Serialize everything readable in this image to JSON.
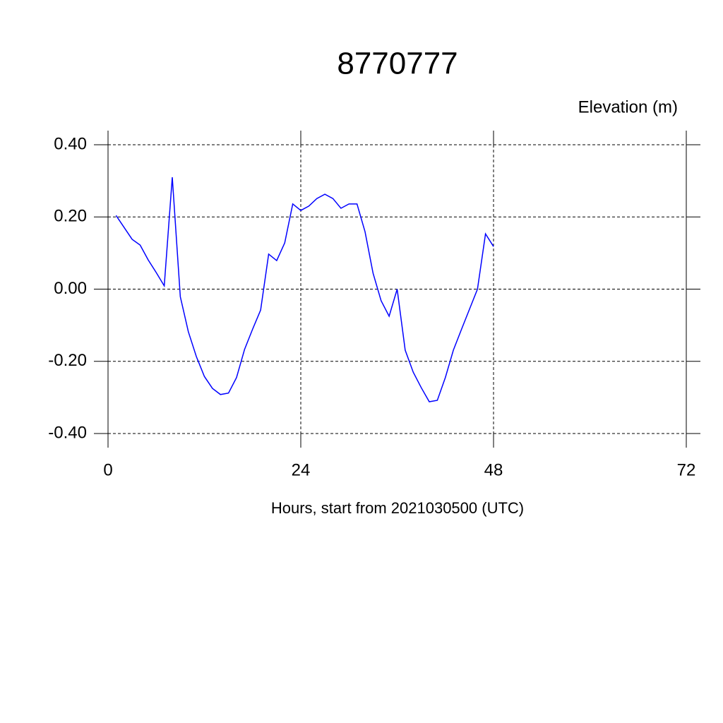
{
  "chart_data": {
    "type": "line",
    "title": "8770777",
    "ylabel": "Elevation (m)",
    "xlabel": "Hours, start from 2021030500 (UTC)",
    "x": [
      1,
      2,
      3,
      4,
      5,
      6,
      7,
      8,
      9,
      10,
      11,
      12,
      13,
      14,
      15,
      16,
      17,
      18,
      19,
      20,
      21,
      22,
      23,
      24,
      25,
      26,
      27,
      28,
      29,
      30,
      31,
      32,
      33,
      34,
      35,
      36,
      37,
      38,
      39,
      40,
      41,
      42,
      43,
      44,
      45,
      46,
      47,
      48
    ],
    "series": [
      {
        "color": "#0000ff",
        "values": [
          0.204,
          0.171,
          0.138,
          0.122,
          0.081,
          0.046,
          0.009,
          0.31,
          -0.021,
          -0.118,
          -0.187,
          -0.242,
          -0.275,
          -0.292,
          -0.288,
          -0.245,
          -0.167,
          -0.111,
          -0.058,
          0.097,
          0.079,
          0.128,
          0.236,
          0.218,
          0.23,
          0.251,
          0.263,
          0.251,
          0.224,
          0.236,
          0.236,
          0.159,
          0.044,
          -0.032,
          -0.075,
          0.0,
          -0.169,
          -0.23,
          -0.273,
          -0.312,
          -0.308,
          -0.245,
          -0.169,
          -0.112,
          -0.056,
          0.0,
          0.153,
          0.118
        ]
      }
    ],
    "xlim": [
      0,
      72
    ],
    "xticks": [
      0,
      24,
      48,
      72
    ],
    "ylim": [
      -0.4,
      0.4
    ],
    "yticks": [
      {
        "value": 0.4,
        "label": "0.40"
      },
      {
        "value": 0.2,
        "label": "0.20"
      },
      {
        "value": 0,
        "label": "0.00"
      },
      {
        "value": -0.2,
        "label": "-0.20"
      },
      {
        "value": -0.4,
        "label": "-0.40"
      }
    ],
    "grid": true
  }
}
